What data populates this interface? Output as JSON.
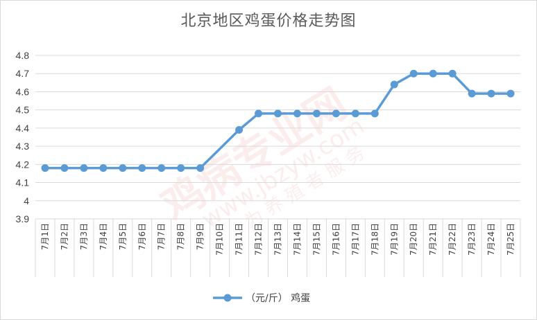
{
  "chart_data": {
    "type": "line",
    "title": "北京地区鸡蛋价格走势图",
    "categories": [
      "7月1日",
      "7月2日",
      "7月3日",
      "7月4日",
      "7月5日",
      "7月6日",
      "7月7日",
      "7月8日",
      "7月9日",
      "7月10日",
      "7月11日",
      "7月12日",
      "7月13日",
      "7月14日",
      "7月15日",
      "7月16日",
      "7月17日",
      "7月18日",
      "7月19日",
      "7月20日",
      "7月21日",
      "7月22日",
      "7月23日",
      "7月24日",
      "7月25日"
    ],
    "series": [
      {
        "name": "（元/斤） 鸡蛋",
        "values": [
          4.18,
          4.18,
          4.18,
          4.18,
          4.18,
          4.18,
          4.18,
          4.18,
          4.18,
          null,
          4.39,
          4.48,
          4.48,
          4.48,
          4.48,
          4.48,
          4.48,
          4.48,
          4.64,
          4.7,
          4.7,
          4.7,
          4.59,
          4.59,
          4.59
        ],
        "color": "#5b9bd5"
      }
    ],
    "yticks": [
      "3.9",
      "4",
      "4.1",
      "4.2",
      "4.3",
      "4.4",
      "4.5",
      "4.6",
      "4.7",
      "4.8"
    ],
    "ylim": [
      3.9,
      4.8
    ],
    "grid": true,
    "legend": "bottom"
  },
  "watermark": {
    "lines": [
      "鸡病专业网",
      "www.jbzyw.com",
      "为 养 殖 者 服 务"
    ]
  }
}
